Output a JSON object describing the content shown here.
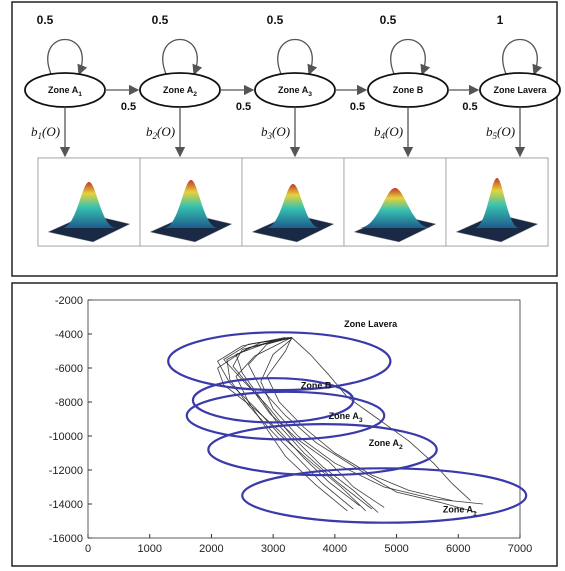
{
  "hmm": {
    "states": [
      {
        "name": "Zone A",
        "sub": "1",
        "self_prob": "0.5",
        "emission": "b",
        "emission_sub": "1",
        "emission_arg": "(O)"
      },
      {
        "name": "Zone A",
        "sub": "2",
        "self_prob": "0.5",
        "emission": "b",
        "emission_sub": "2",
        "emission_arg": "(O)"
      },
      {
        "name": "Zone A",
        "sub": "3",
        "self_prob": "0.5",
        "emission": "b",
        "emission_sub": "3",
        "emission_arg": "(O)"
      },
      {
        "name": "Zone B",
        "sub": "",
        "self_prob": "0.5",
        "emission": "b",
        "emission_sub": "4",
        "emission_arg": "(O)"
      },
      {
        "name": "Zone Lavera",
        "sub": "",
        "self_prob": "1",
        "emission": "b",
        "emission_sub": "5",
        "emission_arg": "(O)"
      }
    ],
    "transitions": [
      "0.5",
      "0.5",
      "0.5",
      "0.5"
    ]
  },
  "chart_data": {
    "type": "scatter",
    "xlim": [
      0,
      7000
    ],
    "ylim": [
      -16000,
      -2000
    ],
    "x_ticks": [
      "0",
      "1000",
      "2000",
      "3000",
      "4000",
      "5000",
      "6000",
      "7000"
    ],
    "y_ticks": [
      "-2000",
      "-4000",
      "-6000",
      "-8000",
      "-10000",
      "-12000",
      "-14000",
      "-16000"
    ],
    "zones": [
      {
        "name": "Zone Lavera",
        "sub": "",
        "cx": 3100,
        "cy": -5600,
        "rx": 1800,
        "ry": 1700,
        "label_x": 4150,
        "label_y": -3600
      },
      {
        "name": "Zone B",
        "sub": "",
        "cx": 3000,
        "cy": -7900,
        "rx": 1300,
        "ry": 1300,
        "label_x": 3450,
        "label_y": -7200
      },
      {
        "name": "Zone A",
        "sub": "3",
        "cx": 3200,
        "cy": -8800,
        "rx": 1600,
        "ry": 1400,
        "label_x": 3900,
        "label_y": -9000
      },
      {
        "name": "Zone A",
        "sub": "2",
        "cx": 3800,
        "cy": -10800,
        "rx": 1850,
        "ry": 1500,
        "label_x": 4550,
        "label_y": -10600
      },
      {
        "name": "Zone A",
        "sub": "1",
        "cx": 4800,
        "cy": -13500,
        "rx": 2300,
        "ry": 1600,
        "label_x": 5750,
        "label_y": -14500
      }
    ],
    "trajectories": [
      [
        [
          6400,
          -14000
        ],
        [
          5600,
          -13700
        ],
        [
          4800,
          -13000
        ],
        [
          4000,
          -11600
        ],
        [
          3400,
          -10000
        ],
        [
          3000,
          -8400
        ],
        [
          2800,
          -6800
        ],
        [
          3000,
          -5200
        ],
        [
          3300,
          -4300
        ]
      ],
      [
        [
          4700,
          -14500
        ],
        [
          4300,
          -13200
        ],
        [
          3800,
          -11800
        ],
        [
          3300,
          -10000
        ],
        [
          2900,
          -8200
        ],
        [
          2500,
          -6700
        ],
        [
          2200,
          -5500
        ],
        [
          2600,
          -4600
        ],
        [
          3300,
          -4200
        ]
      ],
      [
        [
          4500,
          -14400
        ],
        [
          4100,
          -13000
        ],
        [
          3600,
          -11500
        ],
        [
          3100,
          -9900
        ],
        [
          2700,
          -8300
        ],
        [
          2300,
          -6900
        ],
        [
          2100,
          -5600
        ],
        [
          2500,
          -4700
        ],
        [
          3200,
          -4200
        ]
      ],
      [
        [
          4300,
          -14300
        ],
        [
          3800,
          -12800
        ],
        [
          3400,
          -11300
        ],
        [
          3000,
          -9800
        ],
        [
          2600,
          -8200
        ],
        [
          2300,
          -6700
        ],
        [
          2250,
          -5500
        ],
        [
          2800,
          -4500
        ],
        [
          3300,
          -4250
        ]
      ],
      [
        [
          6300,
          -14500
        ],
        [
          5700,
          -13900
        ],
        [
          5000,
          -13300
        ],
        [
          4400,
          -12000
        ],
        [
          3700,
          -10400
        ],
        [
          3200,
          -8800
        ],
        [
          2800,
          -7200
        ],
        [
          2600,
          -5800
        ],
        [
          2900,
          -4600
        ],
        [
          3300,
          -4200
        ]
      ],
      [
        [
          4600,
          -14300
        ],
        [
          4000,
          -12600
        ],
        [
          3500,
          -11000
        ],
        [
          3100,
          -9400
        ],
        [
          2800,
          -7800
        ],
        [
          2500,
          -6300
        ],
        [
          2400,
          -5200
        ],
        [
          3000,
          -4400
        ]
      ],
      [
        [
          4200,
          -14400
        ],
        [
          3700,
          -12900
        ],
        [
          3200,
          -11200
        ],
        [
          2900,
          -9600
        ],
        [
          2600,
          -8000
        ],
        [
          2400,
          -6500
        ],
        [
          2700,
          -5300
        ],
        [
          3300,
          -4200
        ]
      ],
      [
        [
          5900,
          -13800
        ],
        [
          5200,
          -13200
        ],
        [
          4600,
          -12300
        ],
        [
          4000,
          -11000
        ],
        [
          3500,
          -9500
        ],
        [
          3100,
          -8000
        ],
        [
          2900,
          -6500
        ],
        [
          3200,
          -5000
        ],
        [
          3300,
          -4200
        ]
      ],
      [
        [
          4800,
          -14200
        ],
        [
          4300,
          -13000
        ],
        [
          3900,
          -11500
        ],
        [
          3400,
          -10200
        ],
        [
          2950,
          -8700
        ],
        [
          2650,
          -7200
        ],
        [
          2350,
          -5900
        ],
        [
          2500,
          -4900
        ],
        [
          3200,
          -4300
        ]
      ],
      [
        [
          4400,
          -14100
        ],
        [
          3900,
          -12700
        ],
        [
          3500,
          -11300
        ],
        [
          3100,
          -9700
        ],
        [
          2700,
          -8400
        ],
        [
          2200,
          -7000
        ],
        [
          2100,
          -6000
        ],
        [
          2600,
          -4800
        ],
        [
          3250,
          -4200
        ]
      ],
      [
        [
          3300,
          -4200
        ],
        [
          3600,
          -5200
        ],
        [
          3900,
          -6400
        ],
        [
          4200,
          -7700
        ],
        [
          4700,
          -9000
        ],
        [
          5200,
          -10300
        ],
        [
          5600,
          -11600
        ],
        [
          5900,
          -12800
        ],
        [
          6200,
          -13800
        ]
      ]
    ]
  },
  "colors": {
    "ellipse": "#3a3aaa",
    "trace": "#1a1a1a",
    "arrow": "#555555"
  }
}
